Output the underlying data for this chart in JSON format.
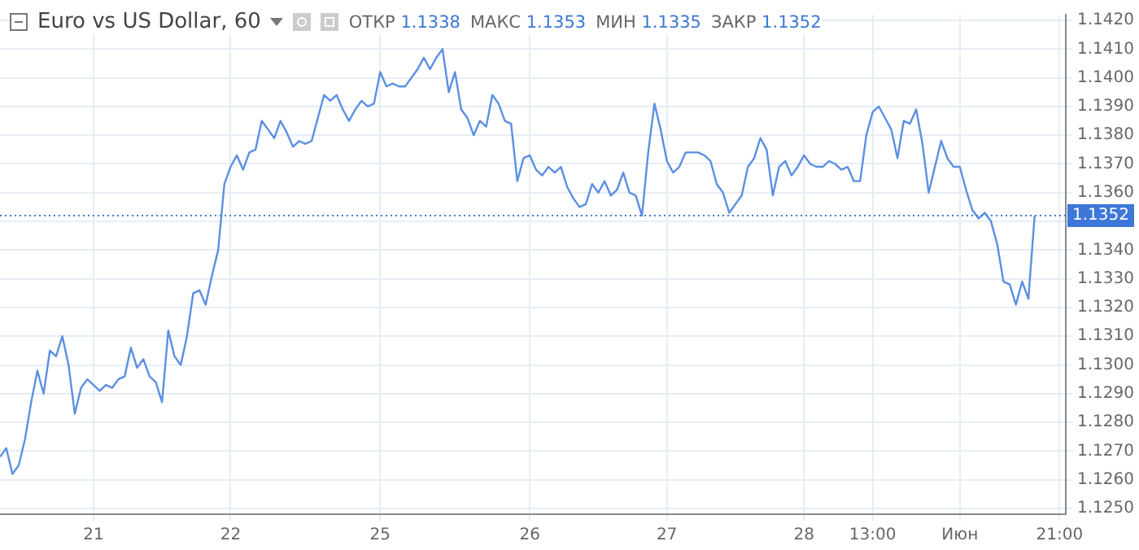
{
  "chart_data": {
    "type": "line",
    "title": "Euro vs US Dollar, 60",
    "annotations": [
      "ОТКР 1.1338",
      "МАКС 1.1353",
      "МИН 1.1335",
      "ЗАКР 1.1352"
    ],
    "categories": [
      null,
      null,
      null,
      null,
      null,
      null,
      null,
      null,
      null,
      null,
      null,
      null,
      null,
      null,
      null,
      "21",
      null,
      null,
      null,
      null,
      null,
      null,
      null,
      null,
      null,
      null,
      null,
      null,
      null,
      null,
      null,
      null,
      null,
      null,
      null,
      null,
      null,
      "22",
      null,
      null,
      null,
      null,
      null,
      null,
      null,
      null,
      null,
      null,
      null,
      null,
      null,
      null,
      null,
      null,
      null,
      null,
      null,
      null,
      null,
      null,
      null,
      "25",
      null,
      null,
      null,
      null,
      null,
      null,
      null,
      null,
      null,
      null,
      null,
      null,
      null,
      null,
      null,
      null,
      null,
      null,
      null,
      null,
      null,
      null,
      null,
      "26",
      null,
      null,
      null,
      null,
      null,
      null,
      null,
      null,
      null,
      null,
      null,
      null,
      null,
      null,
      null,
      null,
      null,
      null,
      null,
      null,
      null,
      "27",
      null,
      null,
      null,
      null,
      null,
      null,
      null,
      null,
      null,
      null,
      null,
      null,
      null,
      null,
      null,
      null,
      null,
      null,
      null,
      null,
      null,
      "28",
      null,
      null,
      null,
      null,
      null,
      null,
      null,
      null,
      null,
      null,
      "13:00",
      null,
      null,
      null,
      null,
      null,
      null,
      null,
      null,
      null,
      null,
      null,
      null,
      null,
      "Июн",
      null,
      null,
      null,
      null,
      null,
      null,
      null,
      null,
      null,
      null,
      null,
      null,
      null,
      null,
      null,
      "21:00",
      null
    ],
    "series": [
      {
        "color": "#5b8fe3",
        "values": [
          1.1268,
          1.1271,
          1.1262,
          1.1265,
          1.1274,
          1.1287,
          1.1298,
          1.129,
          1.1305,
          1.1303,
          1.131,
          1.13,
          1.1283,
          1.1292,
          1.1295,
          1.1293,
          1.1291,
          1.1293,
          1.1292,
          1.1295,
          1.1296,
          1.1306,
          1.1299,
          1.1302,
          1.1296,
          1.1294,
          1.1287,
          1.1312,
          1.1303,
          1.13,
          1.131,
          1.1325,
          1.1326,
          1.1321,
          1.1331,
          1.134,
          1.1363,
          1.1369,
          1.1373,
          1.1368,
          1.1374,
          1.1375,
          1.1385,
          1.1382,
          1.1379,
          1.1385,
          1.1381,
          1.1376,
          1.1378,
          1.1377,
          1.1378,
          1.1386,
          1.1394,
          1.1392,
          1.1394,
          1.1389,
          1.1385,
          1.1389,
          1.1392,
          1.139,
          1.1391,
          1.1402,
          1.1397,
          1.1398,
          1.1397,
          1.1397,
          1.14,
          1.1403,
          1.1407,
          1.1403,
          1.1407,
          1.141,
          1.1395,
          1.1402,
          1.1389,
          1.1386,
          1.138,
          1.1385,
          1.1383,
          1.1394,
          1.1391,
          1.1385,
          1.1384,
          1.1364,
          1.1372,
          1.1373,
          1.1368,
          1.1366,
          1.1369,
          1.1367,
          1.1369,
          1.1362,
          1.1358,
          1.1355,
          1.1356,
          1.1363,
          1.136,
          1.1364,
          1.1359,
          1.1361,
          1.1367,
          1.136,
          1.1359,
          1.1352,
          1.1374,
          1.1391,
          1.1382,
          1.1371,
          1.1367,
          1.1369,
          1.1374,
          1.1374,
          1.1374,
          1.1373,
          1.1371,
          1.1363,
          1.136,
          1.1353,
          1.1356,
          1.1359,
          1.1369,
          1.1372,
          1.1379,
          1.1375,
          1.1359,
          1.1369,
          1.1371,
          1.1366,
          1.1369,
          1.1373,
          1.137,
          1.1369,
          1.1369,
          1.1371,
          1.137,
          1.1368,
          1.1369,
          1.1364,
          1.1364,
          1.138,
          1.1388,
          1.139,
          1.1386,
          1.1382,
          1.1372,
          1.1385,
          1.1384,
          1.1389,
          1.1377,
          1.136,
          1.1369,
          1.1378,
          1.1372,
          1.1369,
          1.1369,
          1.1361,
          1.1354,
          1.1351,
          1.1353,
          1.135,
          1.1342,
          1.1329,
          1.1328,
          1.1321,
          1.1329,
          1.1323,
          1.1352,
          null,
          null,
          null,
          null,
          null
        ]
      }
    ],
    "ylim": [
      1.1248,
      1.1422
    ],
    "yticks": [
      {
        "value": 1.125,
        "label": "1.1250"
      },
      {
        "value": 1.126,
        "label": "1.1260"
      },
      {
        "value": 1.127,
        "label": "1.1270"
      },
      {
        "value": 1.128,
        "label": "1.1280"
      },
      {
        "value": 1.129,
        "label": "1.1290"
      },
      {
        "value": 1.13,
        "label": "1.1300"
      },
      {
        "value": 1.131,
        "label": "1.1310"
      },
      {
        "value": 1.132,
        "label": "1.1320"
      },
      {
        "value": 1.133,
        "label": "1.1330"
      },
      {
        "value": 1.134,
        "label": "1.1340"
      },
      {
        "value": 1.135,
        "label": null
      },
      {
        "value": 1.136,
        "label": "1.1360"
      },
      {
        "value": 1.137,
        "label": "1.1370"
      },
      {
        "value": 1.138,
        "label": "1.1380"
      },
      {
        "value": 1.139,
        "label": "1.1390"
      },
      {
        "value": 1.14,
        "label": "1.1400"
      },
      {
        "value": 1.141,
        "label": "1.1410"
      },
      {
        "value": 1.142,
        "label": "1.1420"
      }
    ],
    "ref_lines": [
      {
        "axis": "y",
        "value": 1.1352,
        "label": "1.1352",
        "color": "#3d78d8",
        "line_style": "dotted"
      }
    ],
    "grid": true,
    "legend": false,
    "marker": "none",
    "line_style": "solid"
  }
}
